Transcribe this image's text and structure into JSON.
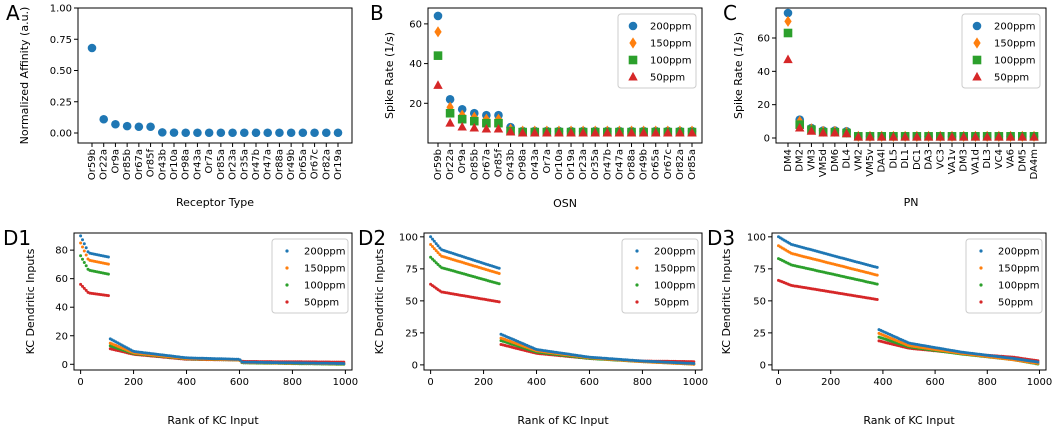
{
  "colors": {
    "s200": "#1f77b4",
    "s150": "#ff7f0e",
    "s100": "#2ca02c",
    "s50": "#d62728"
  },
  "chart_data": [
    {
      "id": "A",
      "panel_label": "A",
      "type": "scatter",
      "xlabel": "Receptor Type",
      "ylabel": "Normalized Affinity (a.u.)",
      "ylim": [
        -0.08,
        1.0
      ],
      "yticks": [
        "0.00",
        "0.25",
        "0.50",
        "0.75",
        "1.00"
      ],
      "categories": [
        "Or59b",
        "Or22a",
        "Or9a",
        "Or85b",
        "Or67a",
        "Or85f",
        "Or43b",
        "Or10a",
        "Or98a",
        "Or43a",
        "Or7a",
        "Or85a",
        "Or23a",
        "Or35a",
        "Or47b",
        "Or47a",
        "Or88a",
        "Or49b",
        "Or65a",
        "Or67c",
        "Or82a",
        "Or19a"
      ],
      "values": [
        0.68,
        0.11,
        0.07,
        0.055,
        0.05,
        0.05,
        0.005,
        0.003,
        0.002,
        0.002,
        0.002,
        0.002,
        0.002,
        0.002,
        0.002,
        0.002,
        0.002,
        0.002,
        0.002,
        0.002,
        0.002,
        0.002
      ]
    },
    {
      "id": "B",
      "panel_label": "B",
      "type": "scatter",
      "xlabel": "OSN",
      "ylabel": "Spike Rate (1/s)",
      "ylim": [
        0,
        68
      ],
      "yticks": [
        "20",
        "40",
        "60"
      ],
      "categories": [
        "Or59b",
        "Or22a",
        "Or9a",
        "Or85b",
        "Or67a",
        "Or85f",
        "Or43b",
        "Or98a",
        "Or43a",
        "Or7a",
        "Or10a",
        "Or19a",
        "Or23a",
        "Or35a",
        "Or47b",
        "Or47a",
        "Or88a",
        "Or49b",
        "Or65a",
        "Or67c",
        "Or82a",
        "Or85a"
      ],
      "legend": [
        "200ppm",
        "150ppm",
        "100ppm",
        "50ppm"
      ],
      "series": [
        {
          "name": "200ppm",
          "marker": "circle",
          "values": [
            64,
            22,
            17,
            15,
            14,
            14,
            8,
            6,
            6,
            6,
            6,
            6,
            6,
            6,
            6,
            6,
            6,
            6,
            6,
            6,
            6,
            6
          ]
        },
        {
          "name": "150ppm",
          "marker": "diamond",
          "values": [
            56,
            18,
            14,
            13,
            12,
            12,
            7,
            6,
            6,
            6,
            6,
            6,
            6,
            6,
            6,
            6,
            6,
            6,
            6,
            6,
            6,
            6
          ]
        },
        {
          "name": "100ppm",
          "marker": "square",
          "values": [
            44,
            15,
            12,
            11,
            10,
            10,
            6,
            5.5,
            5.5,
            5.5,
            5.5,
            5.5,
            5.5,
            5.5,
            5.5,
            5.5,
            5.5,
            5.5,
            5.5,
            5.5,
            5.5,
            5.5
          ]
        },
        {
          "name": "50ppm",
          "marker": "triangle",
          "values": [
            29,
            10,
            8,
            7.5,
            7,
            7,
            5.5,
            5,
            5,
            5,
            5,
            5,
            5,
            5,
            5,
            5,
            5,
            5,
            5,
            5,
            5,
            5
          ]
        }
      ]
    },
    {
      "id": "C",
      "panel_label": "C",
      "type": "scatter",
      "xlabel": "PN",
      "ylabel": "Spike Rate (1/s)",
      "ylim": [
        -3,
        78
      ],
      "yticks": [
        "0",
        "20",
        "40",
        "60"
      ],
      "categories": [
        "DM4",
        "DM2",
        "VM3",
        "VM5d",
        "DM6",
        "DL4",
        "VM2",
        "VM5v",
        "DA4l",
        "DL5",
        "DL1",
        "DC1",
        "DA3",
        "VC3",
        "VA1v",
        "DM3",
        "VA1d",
        "DL3",
        "VC4",
        "VA6",
        "DM5",
        "DA4m"
      ],
      "legend": [
        "200ppm",
        "150ppm",
        "100ppm",
        "50ppm"
      ],
      "series": [
        {
          "name": "200ppm",
          "marker": "circle",
          "values": [
            75,
            11,
            6,
            4.5,
            4.5,
            4,
            1,
            1,
            1,
            1,
            1,
            1,
            1,
            1,
            1,
            1,
            1,
            1,
            1,
            1,
            1,
            1
          ]
        },
        {
          "name": "150ppm",
          "marker": "diamond",
          "values": [
            70,
            10,
            5.5,
            4,
            4,
            3.5,
            1,
            1,
            1,
            1,
            1,
            1,
            1,
            1,
            1,
            1,
            1,
            1,
            1,
            1,
            1,
            1
          ]
        },
        {
          "name": "100ppm",
          "marker": "square",
          "values": [
            63,
            8,
            5,
            3.5,
            3.5,
            3,
            1,
            1,
            1,
            1,
            1,
            1,
            1,
            1,
            1,
            1,
            1,
            1,
            1,
            1,
            1,
            1
          ]
        },
        {
          "name": "50ppm",
          "marker": "triangle",
          "values": [
            47,
            6,
            4,
            3,
            3,
            2.5,
            0.5,
            0.5,
            0.5,
            0.5,
            0.5,
            0.5,
            0.5,
            0.5,
            0.5,
            0.5,
            0.5,
            0.5,
            0.5,
            0.5,
            0.5,
            0.5
          ]
        }
      ]
    },
    {
      "id": "D1",
      "panel_label": "D1",
      "type": "scatter",
      "xlabel": "Rank of KC Input",
      "ylabel": "KC Dendritic Inputs",
      "xlim": [
        -25,
        1025
      ],
      "ylim": [
        -4,
        92
      ],
      "xticks": [
        "0",
        "200",
        "400",
        "600",
        "800",
        "1000"
      ],
      "yticks": [
        "0",
        "20",
        "40",
        "60",
        "80"
      ],
      "legend": [
        "200ppm",
        "150ppm",
        "100ppm",
        "50ppm"
      ],
      "series": [
        {
          "name": "200ppm",
          "break_rank": 110,
          "high": [
            [
              0,
              90
            ],
            [
              30,
              78
            ],
            [
              110,
              75
            ]
          ],
          "low": [
            [
              110,
              18
            ],
            [
              200,
              9
            ],
            [
              400,
              4.5
            ],
            [
              600,
              3.5
            ],
            [
              610,
              1.5
            ],
            [
              1000,
              0.5
            ]
          ]
        },
        {
          "name": "150ppm",
          "break_rank": 110,
          "high": [
            [
              0,
              85
            ],
            [
              30,
              73
            ],
            [
              110,
              70
            ]
          ],
          "low": [
            [
              110,
              15
            ],
            [
              200,
              8
            ],
            [
              400,
              4
            ],
            [
              600,
              3
            ],
            [
              610,
              1.2
            ],
            [
              1000,
              0.3
            ]
          ]
        },
        {
          "name": "100ppm",
          "break_rank": 110,
          "high": [
            [
              0,
              76
            ],
            [
              30,
              66
            ],
            [
              110,
              63
            ]
          ],
          "low": [
            [
              110,
              13
            ],
            [
              200,
              7.5
            ],
            [
              400,
              3.8
            ],
            [
              600,
              3
            ],
            [
              610,
              1
            ],
            [
              1000,
              0
            ]
          ]
        },
        {
          "name": "50ppm",
          "break_rank": 110,
          "high": [
            [
              0,
              56
            ],
            [
              30,
              50
            ],
            [
              110,
              48
            ]
          ],
          "low": [
            [
              110,
              11
            ],
            [
              200,
              7
            ],
            [
              400,
              3.5
            ],
            [
              600,
              3
            ],
            [
              610,
              2
            ],
            [
              1000,
              1.5
            ]
          ]
        }
      ]
    },
    {
      "id": "D2",
      "panel_label": "D2",
      "type": "scatter",
      "xlabel": "Rank of KC Input",
      "ylabel": "KC Dendritic Inputs",
      "xlim": [
        -25,
        1025
      ],
      "ylim": [
        -4,
        103
      ],
      "xticks": [
        "0",
        "200",
        "400",
        "600",
        "800",
        "1000"
      ],
      "yticks": [
        "0",
        "25",
        "50",
        "75",
        "100"
      ],
      "legend": [
        "200ppm",
        "150ppm",
        "100ppm",
        "50ppm"
      ],
      "series": [
        {
          "name": "200ppm",
          "break_rank": 265,
          "high": [
            [
              0,
              100
            ],
            [
              40,
              90
            ],
            [
              265,
              75
            ]
          ],
          "low": [
            [
              265,
              24
            ],
            [
              400,
              12
            ],
            [
              600,
              6
            ],
            [
              800,
              3
            ],
            [
              1000,
              1
            ]
          ]
        },
        {
          "name": "150ppm",
          "break_rank": 265,
          "high": [
            [
              0,
              94
            ],
            [
              40,
              85
            ],
            [
              265,
              71
            ]
          ],
          "low": [
            [
              265,
              21
            ],
            [
              400,
              11
            ],
            [
              600,
              5.5
            ],
            [
              800,
              2.5
            ],
            [
              1000,
              0.5
            ]
          ]
        },
        {
          "name": "100ppm",
          "break_rank": 265,
          "high": [
            [
              0,
              84
            ],
            [
              40,
              76
            ],
            [
              265,
              63
            ]
          ],
          "low": [
            [
              265,
              19
            ],
            [
              400,
              10
            ],
            [
              600,
              5
            ],
            [
              800,
              2.5
            ],
            [
              1000,
              0.5
            ]
          ]
        },
        {
          "name": "50ppm",
          "break_rank": 265,
          "high": [
            [
              0,
              63
            ],
            [
              40,
              57
            ],
            [
              265,
              49
            ]
          ],
          "low": [
            [
              265,
              16
            ],
            [
              400,
              9
            ],
            [
              600,
              5
            ],
            [
              800,
              3
            ],
            [
              1000,
              2.5
            ]
          ]
        }
      ]
    },
    {
      "id": "D3",
      "panel_label": "D3",
      "type": "scatter",
      "xlabel": "Rank of KC Input",
      "ylabel": "KC Dendritic Inputs",
      "xlim": [
        -25,
        1025
      ],
      "ylim": [
        -4,
        103
      ],
      "xticks": [
        "0",
        "200",
        "400",
        "600",
        "800",
        "1000"
      ],
      "yticks": [
        "0",
        "25",
        "50",
        "75",
        "100"
      ],
      "legend": [
        "200ppm",
        "150ppm",
        "100ppm",
        "50ppm"
      ],
      "series": [
        {
          "name": "200ppm",
          "break_rank": 380,
          "high": [
            [
              0,
              100
            ],
            [
              50,
              94
            ],
            [
              380,
              76
            ]
          ],
          "low": [
            [
              380,
              28
            ],
            [
              500,
              17
            ],
            [
              700,
              10
            ],
            [
              900,
              5
            ],
            [
              1000,
              2
            ]
          ]
        },
        {
          "name": "150ppm",
          "break_rank": 380,
          "high": [
            [
              0,
              93
            ],
            [
              50,
              87
            ],
            [
              380,
              70
            ]
          ],
          "low": [
            [
              380,
              25
            ],
            [
              500,
              15
            ],
            [
              700,
              9
            ],
            [
              900,
              4
            ],
            [
              1000,
              1
            ]
          ]
        },
        {
          "name": "100ppm",
          "break_rank": 380,
          "high": [
            [
              0,
              83
            ],
            [
              50,
              78
            ],
            [
              380,
              63
            ]
          ],
          "low": [
            [
              380,
              22
            ],
            [
              500,
              14
            ],
            [
              700,
              8.5
            ],
            [
              900,
              4
            ],
            [
              1000,
              0.5
            ]
          ]
        },
        {
          "name": "50ppm",
          "break_rank": 380,
          "high": [
            [
              0,
              66
            ],
            [
              50,
              62
            ],
            [
              380,
              51
            ]
          ],
          "low": [
            [
              380,
              19
            ],
            [
              500,
              13
            ],
            [
              700,
              9
            ],
            [
              900,
              6
            ],
            [
              1000,
              3
            ]
          ]
        }
      ]
    }
  ]
}
